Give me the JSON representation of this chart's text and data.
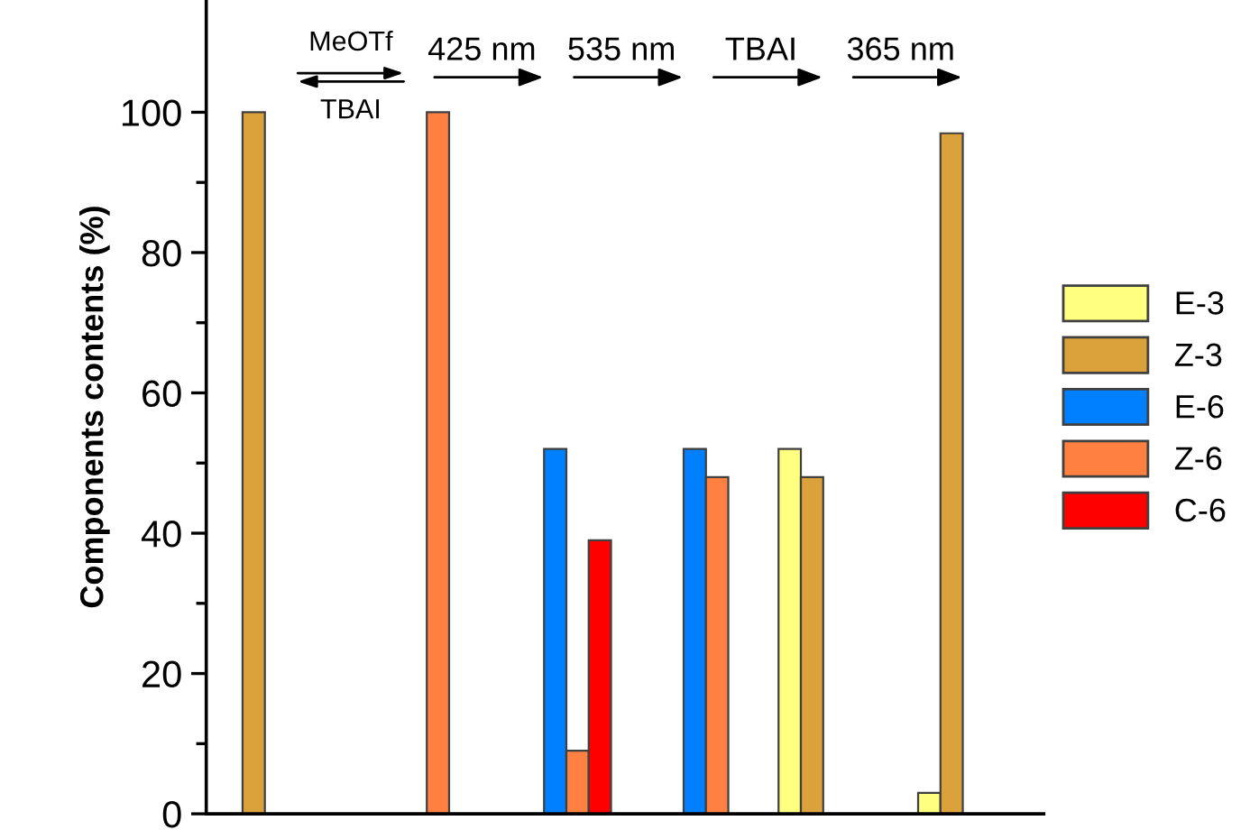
{
  "chart_data": {
    "type": "bar",
    "ylabel": "Components contents (%)",
    "categories": [
      null,
      null,
      null,
      null,
      null,
      null
    ],
    "series": [
      {
        "name": "E-3",
        "color": "#ffff80",
        "values": [
          null,
          null,
          null,
          null,
          52,
          3
        ]
      },
      {
        "name": "Z-3",
        "color": "#dba13a",
        "values": [
          100,
          null,
          null,
          null,
          48,
          97
        ]
      },
      {
        "name": "E-6",
        "color": "#0080ff",
        "values": [
          null,
          null,
          52,
          52,
          null,
          null
        ]
      },
      {
        "name": "Z-6",
        "color": "#ff8040",
        "values": [
          null,
          100,
          9,
          48,
          null,
          null
        ]
      },
      {
        "name": "C-6",
        "color": "#ff0000",
        "values": [
          null,
          null,
          39,
          null,
          null,
          null
        ]
      }
    ],
    "ylim": [
      0,
      116
    ],
    "yticks": [
      0,
      {
        "value": 10,
        "label": null
      },
      20,
      {
        "value": 30,
        "label": null
      },
      40,
      {
        "value": 50,
        "label": null
      },
      60,
      {
        "value": 70,
        "label": null
      },
      80,
      {
        "value": 90,
        "label": null
      },
      100
    ],
    "annotations": [
      "MeOTf",
      "TBAI",
      "425 nm",
      "535 nm",
      "TBAI",
      "365 nm"
    ],
    "legend": "center right",
    "grid": false
  }
}
